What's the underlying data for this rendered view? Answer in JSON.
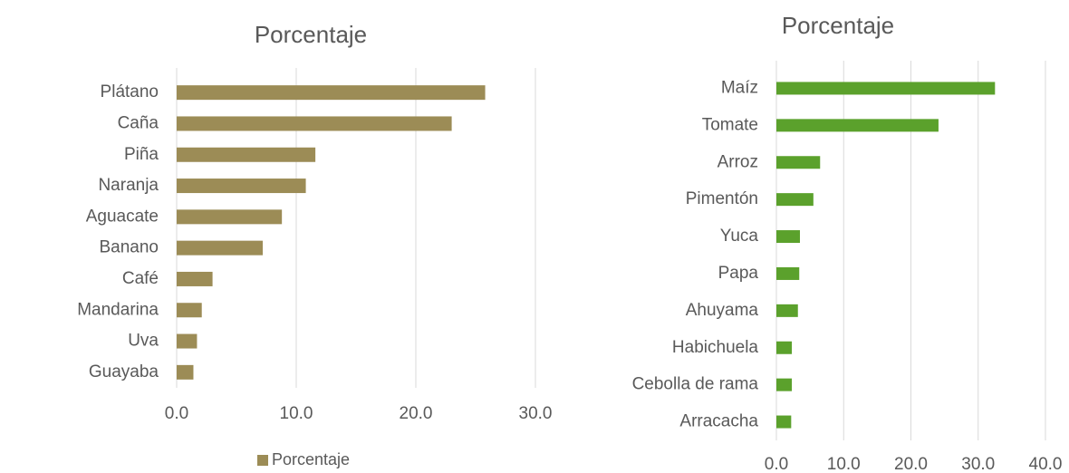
{
  "chart_data": [
    {
      "type": "bar",
      "title": "Porcentaje",
      "categories": [
        "Plátano",
        "Caña",
        "Piña",
        "Naranja",
        "Aguacate",
        "Banano",
        "Café",
        "Mandarina",
        "Uva",
        "Guayaba"
      ],
      "series": [
        {
          "name": "Porcentaje",
          "color": "#9c8c56",
          "values": [
            25.8,
            23.0,
            11.6,
            10.8,
            8.8,
            7.2,
            3.0,
            2.1,
            1.7,
            1.4
          ]
        }
      ],
      "xlim": [
        0,
        30
      ],
      "xticks": [
        {
          "value": 0,
          "label": "0.0"
        },
        {
          "value": 10,
          "label": "10.0"
        },
        {
          "value": 20,
          "label": "20.0"
        },
        {
          "value": 30,
          "label": "30.0"
        }
      ],
      "grid": true,
      "legend": "bottom"
    },
    {
      "type": "bar",
      "title": "Porcentaje",
      "categories": [
        "Maíz",
        "Tomate",
        "Arroz",
        "Pimentón",
        "Yuca",
        "Papa",
        "Ahuyama",
        "Habichuela",
        "Cebolla de rama",
        "Arracacha"
      ],
      "values": [
        32.5,
        24.1,
        6.5,
        5.5,
        3.5,
        3.4,
        3.2,
        2.3,
        2.3,
        2.2
      ],
      "color": "#5ba12c",
      "xlim": [
        0,
        40
      ],
      "xticks": [
        {
          "value": 0,
          "label": "0.0"
        },
        {
          "value": 10,
          "label": "10.0"
        },
        {
          "value": 20,
          "label": "20.0"
        },
        {
          "value": 30,
          "label": "30.0"
        },
        {
          "value": 40,
          "label": "40.0"
        }
      ],
      "grid": true
    }
  ]
}
